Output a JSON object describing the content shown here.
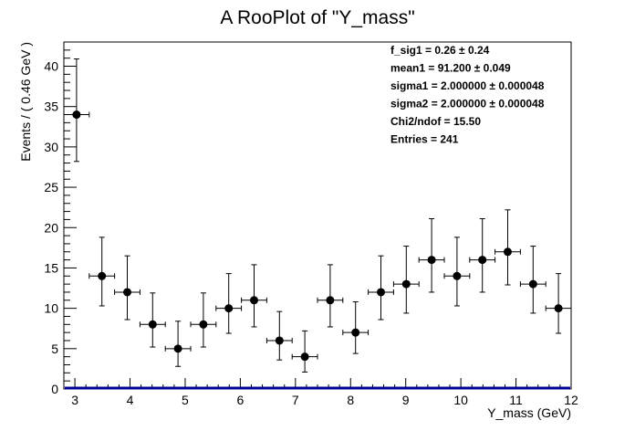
{
  "chart_data": {
    "type": "scatter",
    "title": "A RooPlot of \"Y_mass\"",
    "xlabel": "Y_mass (GeV)",
    "ylabel": "Events / ( 0.46 GeV )",
    "xlim": [
      2.8,
      12.0
    ],
    "ylim": [
      0,
      43
    ],
    "x_ticks": [
      "3",
      "4",
      "5",
      "6",
      "7",
      "8",
      "9",
      "10",
      "11",
      "12"
    ],
    "y_ticks": [
      "0",
      "5",
      "10",
      "15",
      "20",
      "25",
      "30",
      "35",
      "40"
    ],
    "bin_half_width": 0.23,
    "points": [
      {
        "x": 3.03,
        "y": 34,
        "err_lo": 5.8,
        "err_hi": 6.9
      },
      {
        "x": 3.49,
        "y": 14,
        "err_lo": 3.7,
        "err_hi": 4.8
      },
      {
        "x": 3.95,
        "y": 12,
        "err_lo": 3.4,
        "err_hi": 4.5
      },
      {
        "x": 4.41,
        "y": 8,
        "err_lo": 2.8,
        "err_hi": 3.9
      },
      {
        "x": 4.87,
        "y": 5,
        "err_lo": 2.2,
        "err_hi": 3.4
      },
      {
        "x": 5.33,
        "y": 8,
        "err_lo": 2.8,
        "err_hi": 3.9
      },
      {
        "x": 5.79,
        "y": 10,
        "err_lo": 3.1,
        "err_hi": 4.3
      },
      {
        "x": 6.25,
        "y": 11,
        "err_lo": 3.3,
        "err_hi": 4.4
      },
      {
        "x": 6.71,
        "y": 6,
        "err_lo": 2.4,
        "err_hi": 3.6
      },
      {
        "x": 7.17,
        "y": 4,
        "err_lo": 1.9,
        "err_hi": 3.2
      },
      {
        "x": 7.63,
        "y": 11,
        "err_lo": 3.3,
        "err_hi": 4.4
      },
      {
        "x": 8.09,
        "y": 7,
        "err_lo": 2.6,
        "err_hi": 3.8
      },
      {
        "x": 8.55,
        "y": 12,
        "err_lo": 3.4,
        "err_hi": 4.5
      },
      {
        "x": 9.01,
        "y": 13,
        "err_lo": 3.6,
        "err_hi": 4.7
      },
      {
        "x": 9.47,
        "y": 16,
        "err_lo": 4.0,
        "err_hi": 5.1
      },
      {
        "x": 9.93,
        "y": 14,
        "err_lo": 3.7,
        "err_hi": 4.8
      },
      {
        "x": 10.39,
        "y": 16,
        "err_lo": 4.0,
        "err_hi": 5.1
      },
      {
        "x": 10.85,
        "y": 17,
        "err_lo": 4.1,
        "err_hi": 5.2
      },
      {
        "x": 11.31,
        "y": 13,
        "err_lo": 3.6,
        "err_hi": 4.7
      },
      {
        "x": 11.77,
        "y": 10,
        "err_lo": 3.1,
        "err_hi": 4.3
      }
    ],
    "fit_line": {
      "y": 0,
      "color": "#000099"
    },
    "marker_color": "#000000",
    "grid": false,
    "stats_box": {
      "placement": "top-right",
      "lines": [
        "f_sig1 =  0.26 ± 0.24",
        "mean1 =  91.200 ± 0.049",
        "sigma1 =  2.000000 ± 0.000048",
        "sigma2 =  2.000000 ± 0.000048",
        "Chi2/ndof =  15.50",
        "Entries =  241"
      ]
    }
  }
}
